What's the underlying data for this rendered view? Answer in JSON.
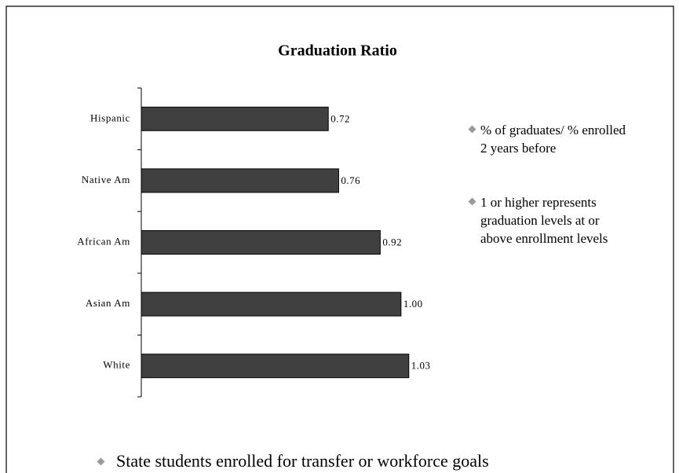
{
  "chart_data": {
    "type": "bar",
    "orientation": "horizontal",
    "title": "Graduation Ratio",
    "categories": [
      "Hispanic",
      "Native Am",
      "African Am",
      "Asian Am",
      "White"
    ],
    "values": [
      0.72,
      0.76,
      0.92,
      1.0,
      1.03
    ],
    "value_labels": [
      "0.72",
      "0.76",
      "0.92",
      "1.00",
      "1.03"
    ],
    "color": "#404040",
    "xlim": [
      0,
      1.2
    ]
  },
  "side_bullets": [
    "% of graduates/ % enrolled 2 years before",
    "1 or higher represents graduation levels at or above enrollment levels"
  ],
  "footer_bullet": "State students enrolled for transfer or workforce goals"
}
